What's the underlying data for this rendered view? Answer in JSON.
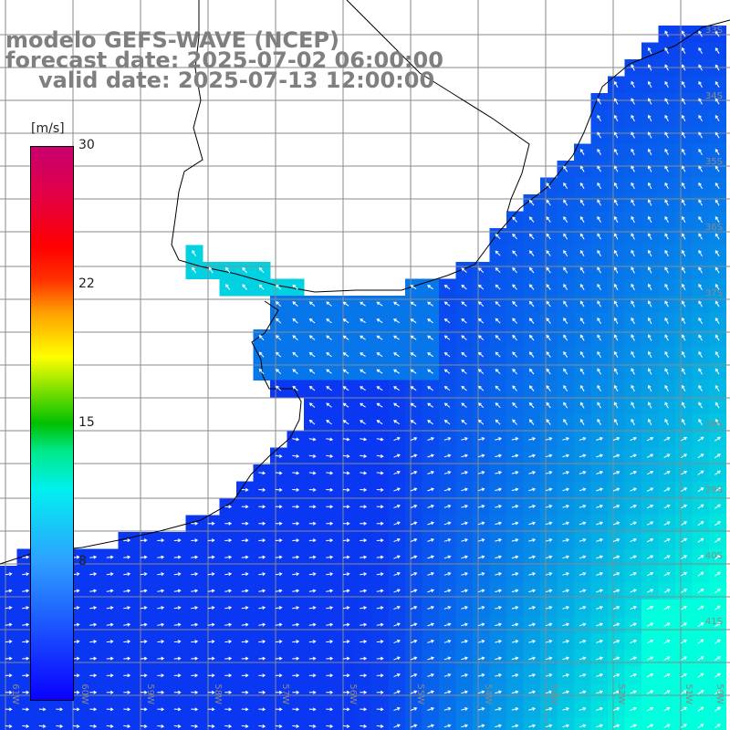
{
  "title": {
    "line1": "modelo GEFS-WAVE (NCEP)",
    "line2": "forecast date: 2025-07-02 06:00:00",
    "line3": "valid date: 2025-07-13 12:00:00"
  },
  "colorbar": {
    "unit": "[m/s]",
    "ticks": [
      "30",
      "22",
      "15",
      "8"
    ],
    "min": 0,
    "max": 30,
    "colors": [
      "#0a00ff",
      "#2ea0ff",
      "#00f0f0",
      "#00c000",
      "#ffff00",
      "#ff0000",
      "#c8006e"
    ]
  },
  "map": {
    "ocean_low_color": "#0b2cf2",
    "ocean_high_color": "#00ffdc",
    "land_color": "#ffffff",
    "grid_color": "#8a8a8a",
    "lat_labels": [
      "33S",
      "34S",
      "35S",
      "36S",
      "37S",
      "38S",
      "39S",
      "40S",
      "41S"
    ],
    "lon_labels": [
      "61W",
      "60W",
      "59W",
      "58W",
      "57W",
      "56W",
      "55W",
      "54W",
      "53W",
      "52W",
      "51W",
      "50W"
    ]
  }
}
